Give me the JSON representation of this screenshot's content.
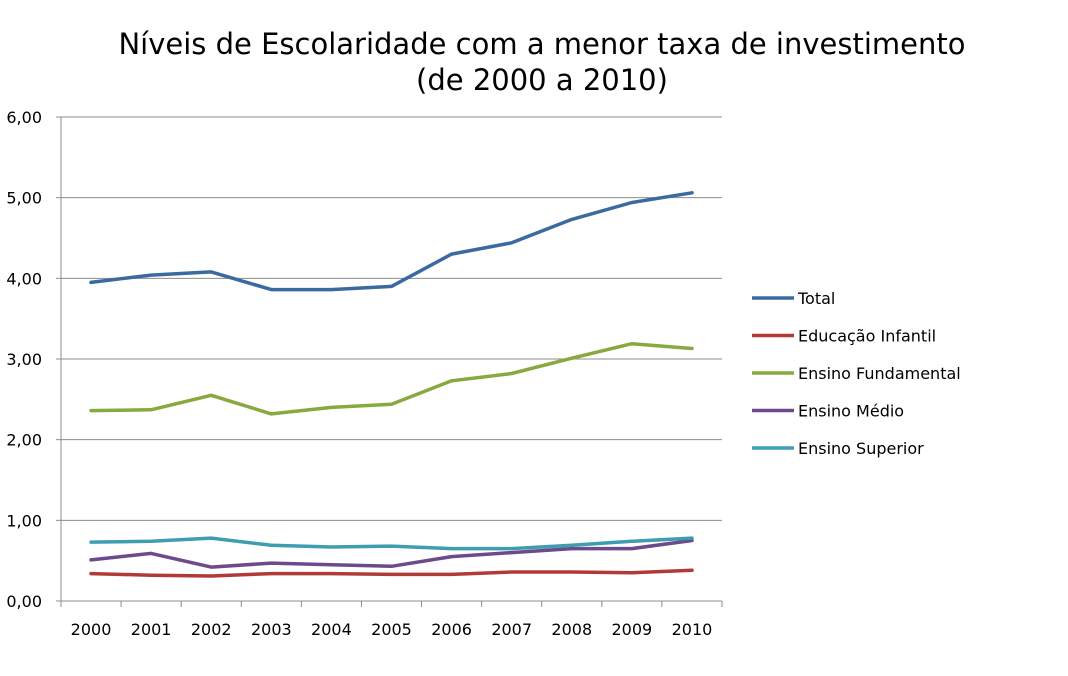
{
  "chart_data": {
    "type": "line",
    "title": "Níveis de Escolaridade com a menor taxa de investimento",
    "subtitle": "(de 2000 a 2010)",
    "xlabel": "",
    "ylabel": "",
    "categories": [
      "2000",
      "2001",
      "2002",
      "2003",
      "2004",
      "2005",
      "2006",
      "2007",
      "2008",
      "2009",
      "2010"
    ],
    "ylim": [
      0,
      6
    ],
    "yticks": [
      0,
      1,
      2,
      3,
      4,
      5,
      6
    ],
    "ytick_labels": [
      "0,00",
      "1,00",
      "2,00",
      "3,00",
      "4,00",
      "5,00",
      "6,00"
    ],
    "grid": true,
    "legend_position": "right",
    "series": [
      {
        "name": "Total",
        "color": "#3a6aa0",
        "values": [
          3.95,
          4.04,
          4.08,
          3.86,
          3.86,
          3.9,
          4.3,
          4.44,
          4.73,
          4.94,
          5.06
        ]
      },
      {
        "name": "Educação Infantil",
        "color": "#b03a37",
        "values": [
          0.34,
          0.32,
          0.31,
          0.34,
          0.34,
          0.33,
          0.33,
          0.36,
          0.36,
          0.35,
          0.38
        ]
      },
      {
        "name": "Ensino Fundamental",
        "color": "#86aa40",
        "values": [
          2.36,
          2.37,
          2.55,
          2.32,
          2.4,
          2.44,
          2.73,
          2.82,
          3.01,
          3.19,
          3.13
        ]
      },
      {
        "name": "Ensino Médio",
        "color": "#6d4a8c",
        "values": [
          0.51,
          0.59,
          0.42,
          0.47,
          0.45,
          0.43,
          0.55,
          0.6,
          0.65,
          0.65,
          0.75
        ]
      },
      {
        "name": "Ensino Superior",
        "color": "#3f9db0",
        "values": [
          0.73,
          0.74,
          0.78,
          0.69,
          0.67,
          0.68,
          0.65,
          0.65,
          0.69,
          0.74,
          0.78
        ]
      }
    ]
  }
}
